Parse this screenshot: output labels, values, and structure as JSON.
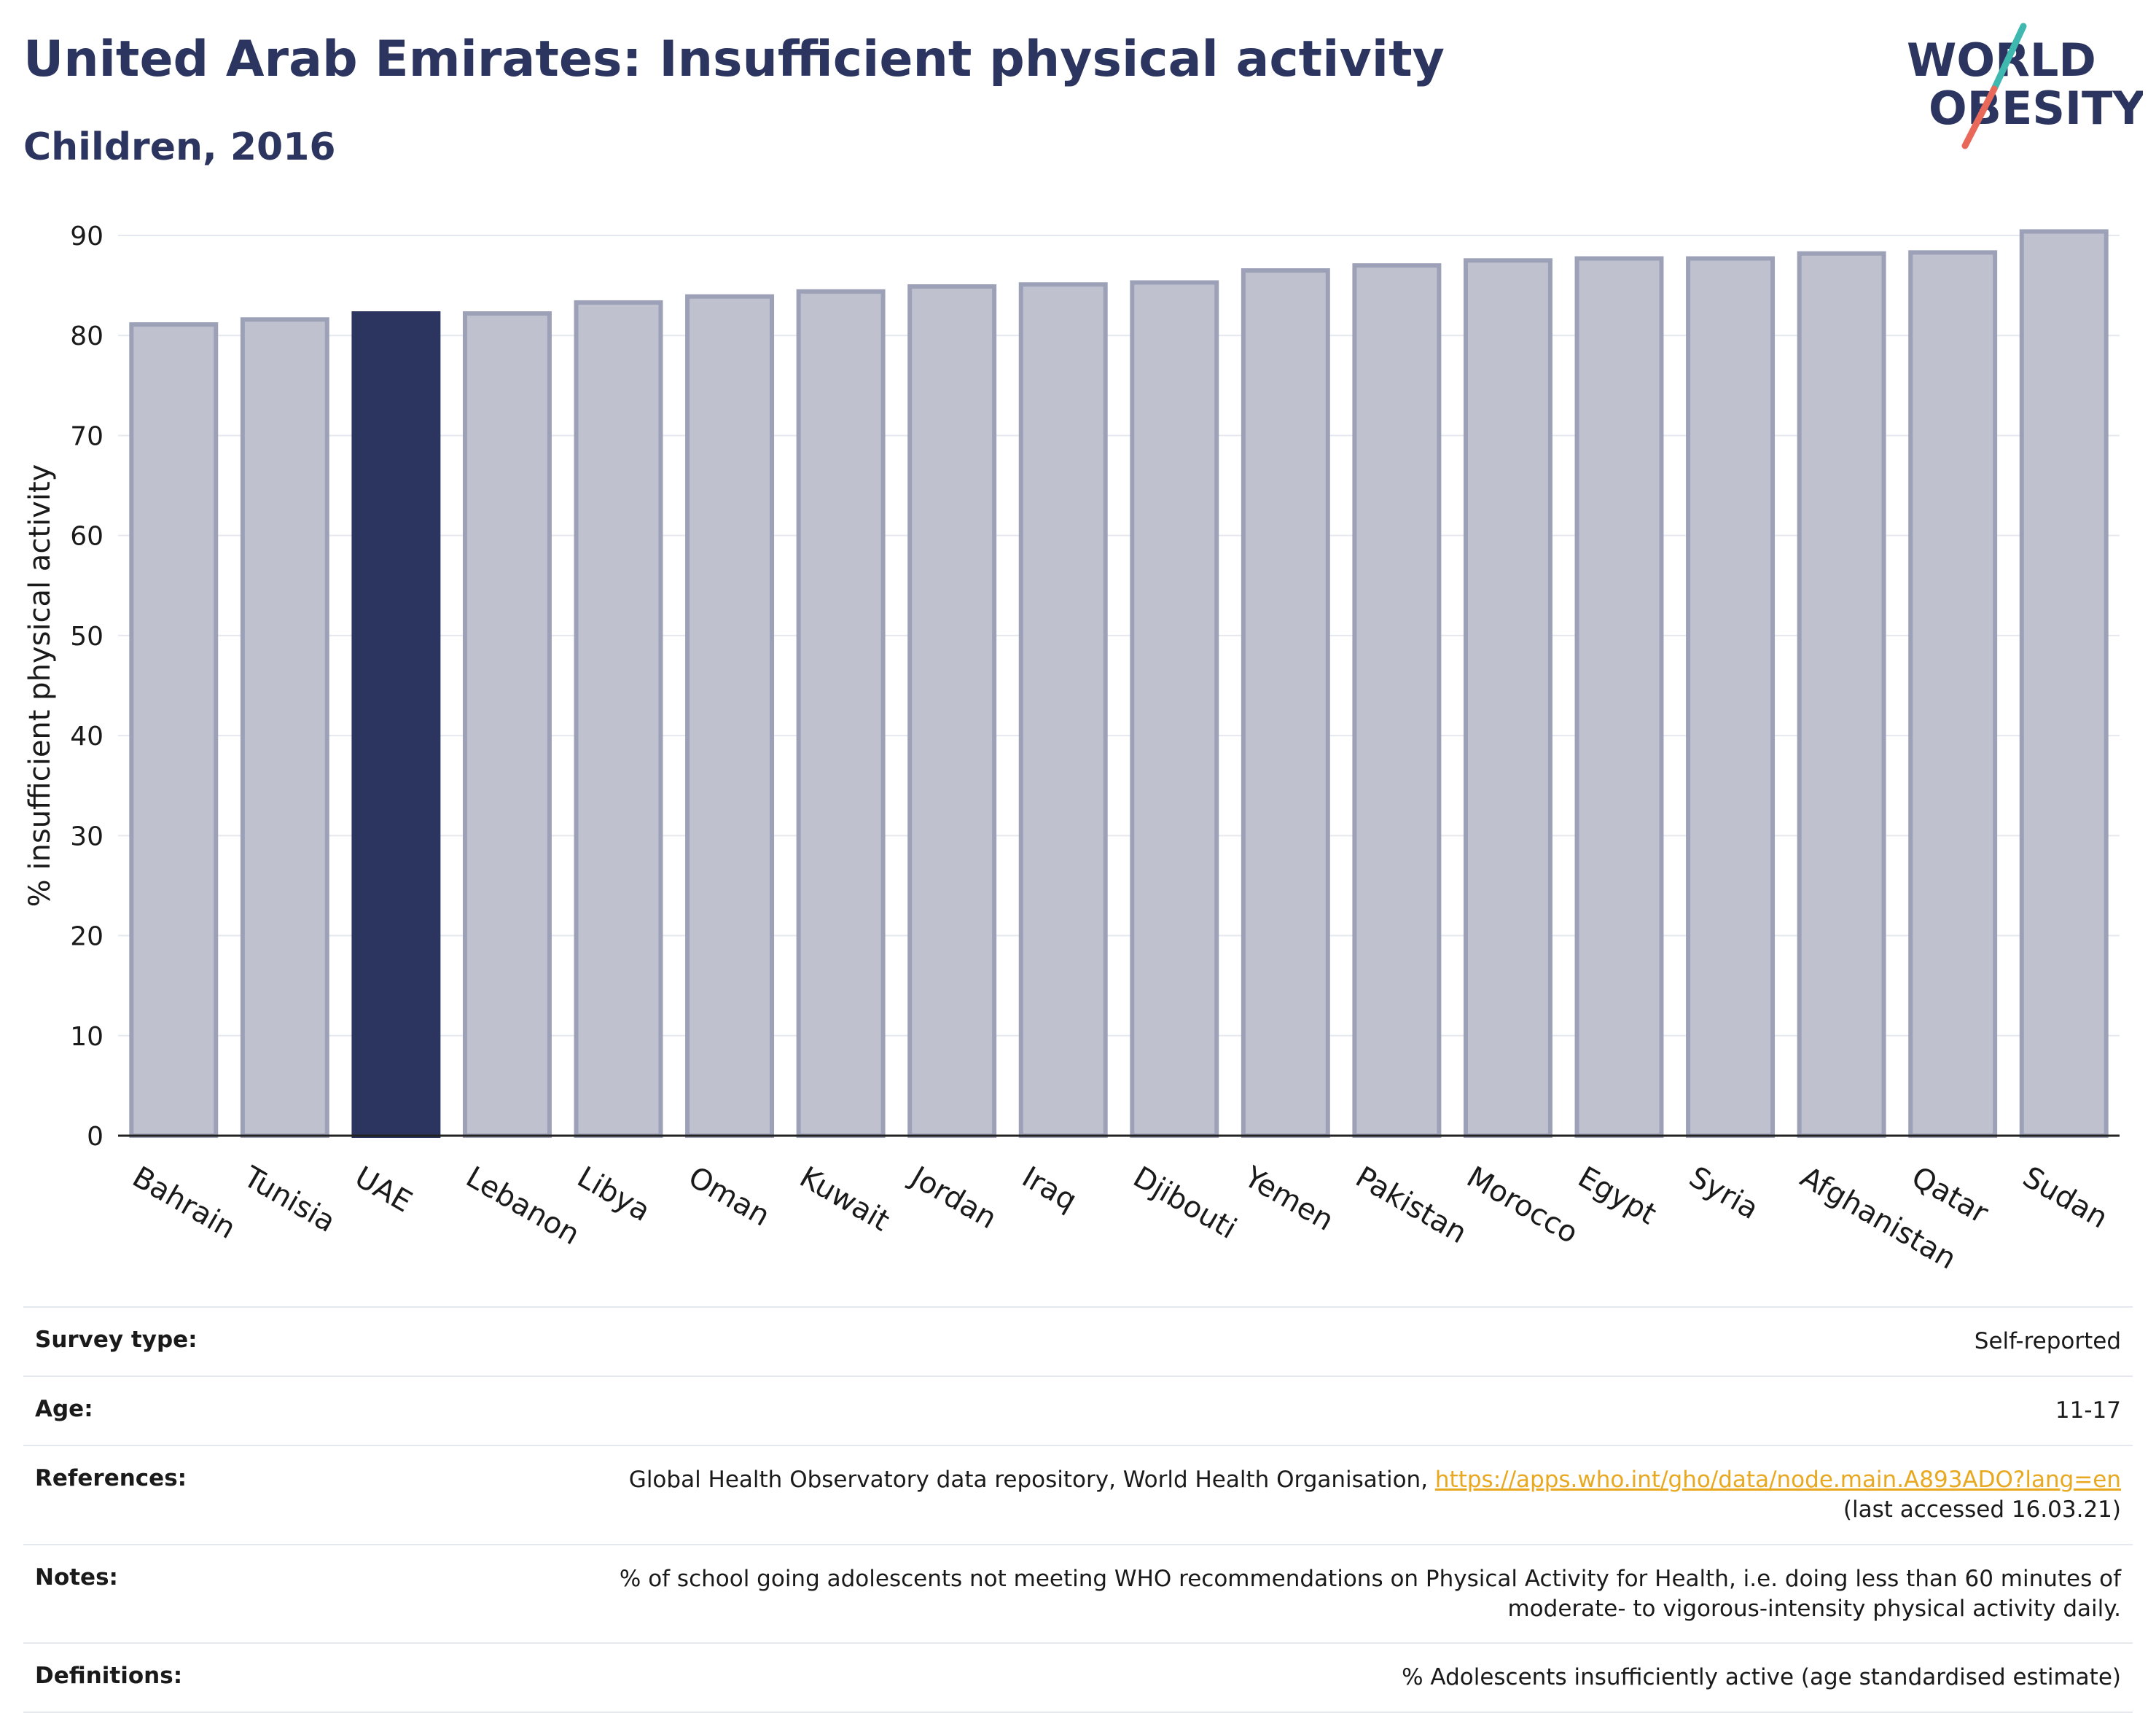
{
  "header": {
    "title": "United Arab Emirates: Insufficient physical activity",
    "subtitle": "Children, 2016"
  },
  "logo": {
    "line1": "WORLD",
    "line2": "OBESITY"
  },
  "chart_data": {
    "type": "bar",
    "ylabel": "% insufficient physical activity",
    "ylim": [
      0,
      90
    ],
    "yticks": [
      0,
      10,
      20,
      30,
      40,
      50,
      60,
      70,
      80,
      90
    ],
    "grid": true,
    "highlight": "UAE",
    "categories": [
      "Bahrain",
      "Tunisia",
      "UAE",
      "Lebanon",
      "Libya",
      "Oman",
      "Kuwait",
      "Jordan",
      "Iraq",
      "Djibouti",
      "Yemen",
      "Pakistan",
      "Morocco",
      "Egypt",
      "Syria",
      "Afghanistan",
      "Qatar",
      "Sudan"
    ],
    "values": [
      81.1,
      81.6,
      82.2,
      82.2,
      83.3,
      83.9,
      84.4,
      84.9,
      85.1,
      85.3,
      86.5,
      87.0,
      87.5,
      87.7,
      87.7,
      88.2,
      88.3,
      90.4
    ],
    "colors": {
      "bar": "#bfc1cf",
      "bar_edge": "#9ca1b8",
      "highlight": "#2b355f"
    }
  },
  "info": {
    "survey_label": "Survey type:",
    "survey_value": "Self-reported",
    "age_label": "Age:",
    "age_value": "11-17",
    "references_label": "References:",
    "references_text": "Global Health Observatory data repository, World Health Organisation, ",
    "references_link": "https://apps.who.int/gho/data/node.main.A893ADO?lang=en",
    "references_accessed": "(last accessed 16.03.21)",
    "notes_label": "Notes:",
    "notes_line1": "% of school going adolescents not meeting WHO recommendations on Physical Activity for Health, i.e. doing less than 60 minutes of",
    "notes_line2": "moderate- to vigorous-intensity physical activity daily.",
    "definitions_label": "Definitions:",
    "definitions_value": "% Adolescents insufficiently active (age standardised estimate)"
  }
}
